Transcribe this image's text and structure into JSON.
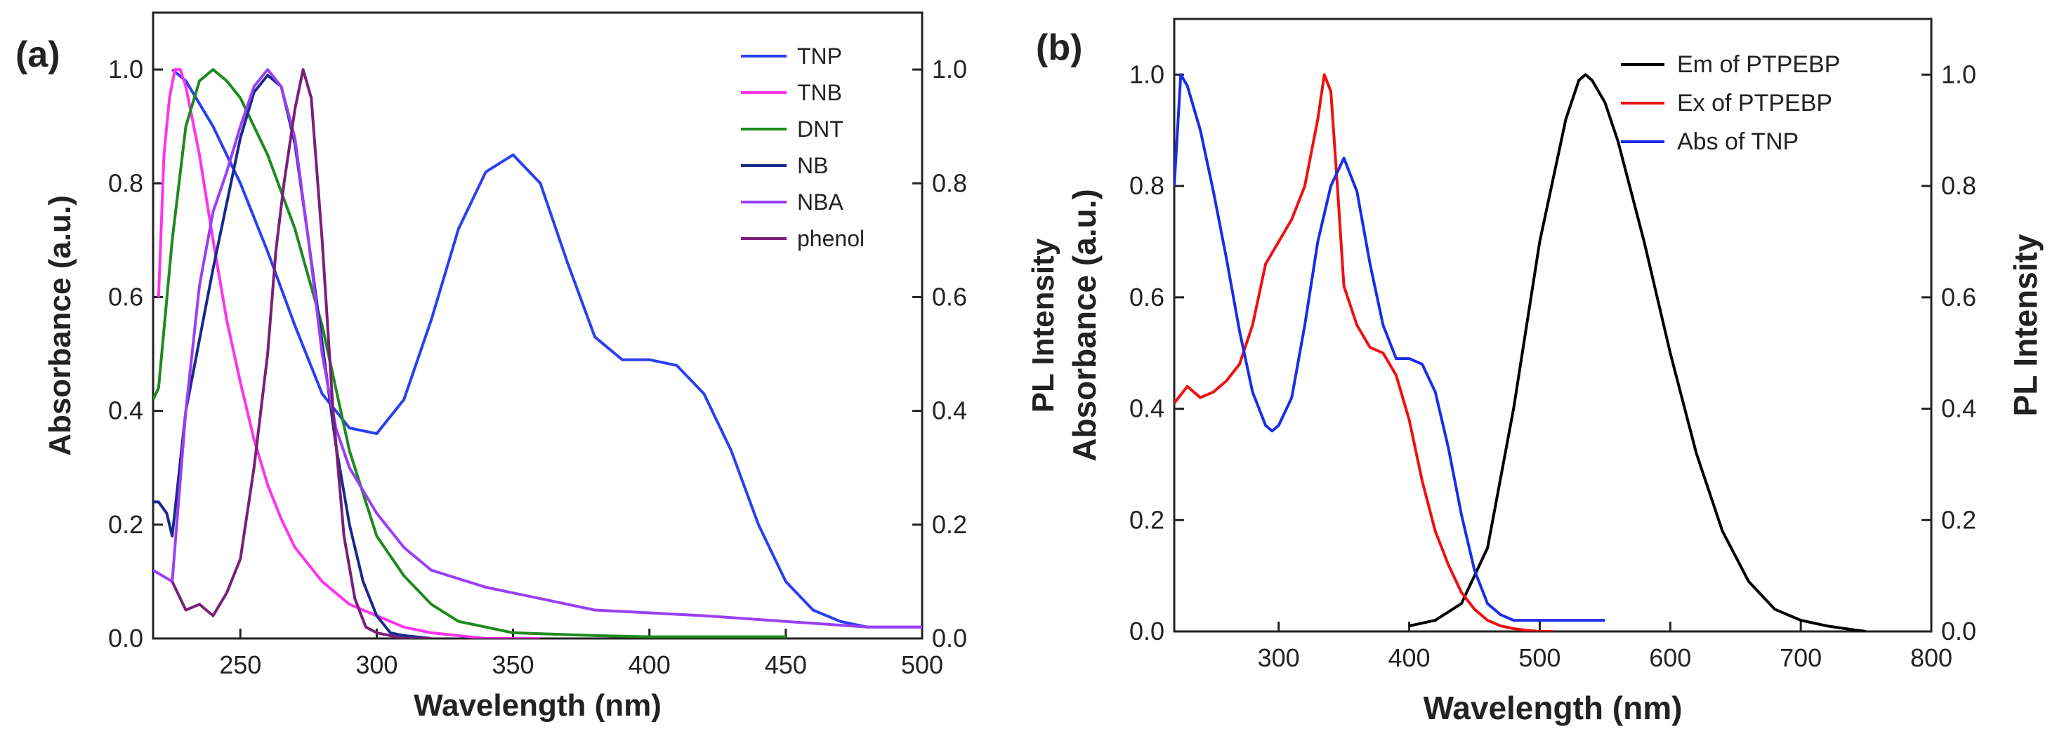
{
  "chart_data": [
    {
      "panel": "(a)",
      "type": "line",
      "xlabel": "Wavelength (nm)",
      "ylabel": "Absorbance (a.u.)",
      "y2label": "PL Intensity",
      "xlim": [
        218,
        500
      ],
      "ylim": [
        0,
        1.1
      ],
      "y2lim": [
        0,
        1.1
      ],
      "xticks": [
        "250",
        "300",
        "350",
        "400",
        "450",
        "500"
      ],
      "yticks": [
        "0.0",
        "0.2",
        "0.4",
        "0.6",
        "0.8",
        "1.0"
      ],
      "y2ticks": [
        "0.0",
        "0.2",
        "0.4",
        "0.6",
        "0.8",
        "1.0"
      ],
      "legend_position": "top-right",
      "series": [
        {
          "name": "TNP",
          "color": "#2b3ff0",
          "x": [
            225,
            230,
            240,
            250,
            260,
            270,
            280,
            290,
            300,
            310,
            320,
            330,
            340,
            350,
            360,
            370,
            380,
            390,
            400,
            410,
            420,
            430,
            440,
            450,
            460,
            470,
            480,
            490,
            500
          ],
          "y": [
            1.0,
            0.98,
            0.9,
            0.8,
            0.68,
            0.55,
            0.43,
            0.37,
            0.36,
            0.42,
            0.56,
            0.72,
            0.82,
            0.85,
            0.8,
            0.66,
            0.53,
            0.49,
            0.49,
            0.48,
            0.43,
            0.33,
            0.2,
            0.1,
            0.05,
            0.03,
            0.02,
            0.02,
            0.02
          ]
        },
        {
          "name": "TNB",
          "color": "#ff33ee",
          "x": [
            220,
            222,
            224,
            226,
            228,
            230,
            235,
            240,
            245,
            250,
            255,
            260,
            265,
            270,
            280,
            290,
            300,
            310,
            320,
            340,
            360
          ],
          "y": [
            0.6,
            0.85,
            0.95,
            1.0,
            1.0,
            0.97,
            0.85,
            0.7,
            0.56,
            0.45,
            0.35,
            0.27,
            0.21,
            0.16,
            0.1,
            0.06,
            0.04,
            0.02,
            0.01,
            0.0,
            0.0
          ]
        },
        {
          "name": "DNT",
          "color": "#1f8a1f",
          "x": [
            218,
            220,
            225,
            230,
            235,
            240,
            245,
            250,
            260,
            270,
            280,
            290,
            300,
            310,
            320,
            330,
            350,
            380,
            400,
            450
          ],
          "y": [
            0.42,
            0.44,
            0.7,
            0.9,
            0.98,
            1.0,
            0.98,
            0.95,
            0.85,
            0.72,
            0.55,
            0.33,
            0.18,
            0.11,
            0.06,
            0.03,
            0.01,
            0.005,
            0.003,
            0.003
          ]
        },
        {
          "name": "NB",
          "color": "#1a2a8c",
          "x": [
            218,
            220,
            223,
            225,
            230,
            240,
            250,
            255,
            260,
            265,
            270,
            275,
            280,
            285,
            290,
            295,
            300,
            305,
            310,
            320
          ],
          "y": [
            0.24,
            0.24,
            0.22,
            0.18,
            0.4,
            0.65,
            0.88,
            0.96,
            0.99,
            0.97,
            0.87,
            0.7,
            0.52,
            0.34,
            0.2,
            0.1,
            0.04,
            0.01,
            0.005,
            0.0
          ]
        },
        {
          "name": "NBA",
          "color": "#9b3ff5",
          "x": [
            218,
            225,
            230,
            235,
            240,
            245,
            250,
            255,
            260,
            265,
            270,
            275,
            280,
            285,
            290,
            300,
            310,
            320,
            340,
            360,
            380,
            400,
            420,
            450,
            480,
            500
          ],
          "y": [
            0.12,
            0.1,
            0.4,
            0.62,
            0.75,
            0.82,
            0.9,
            0.97,
            1.0,
            0.97,
            0.88,
            0.7,
            0.5,
            0.37,
            0.3,
            0.22,
            0.16,
            0.12,
            0.09,
            0.07,
            0.05,
            0.045,
            0.04,
            0.03,
            0.02,
            0.02
          ]
        },
        {
          "name": "phenol",
          "color": "#7a1f7a",
          "x": [
            225,
            230,
            235,
            240,
            245,
            250,
            255,
            260,
            263,
            266,
            270,
            273,
            276,
            280,
            284,
            288,
            292,
            296,
            300,
            310,
            320
          ],
          "y": [
            0.1,
            0.05,
            0.06,
            0.04,
            0.08,
            0.14,
            0.3,
            0.5,
            0.68,
            0.8,
            0.93,
            1.0,
            0.95,
            0.7,
            0.4,
            0.18,
            0.07,
            0.02,
            0.01,
            0.0,
            0.0
          ]
        }
      ]
    },
    {
      "panel": "(b)",
      "type": "line",
      "xlabel": "Wavelength (nm)",
      "ylabel": "Absorbance (a.u.)",
      "y2label": "PL Intensity",
      "xlim": [
        220,
        800
      ],
      "ylim": [
        0,
        1.1
      ],
      "y2lim": [
        0,
        1.1
      ],
      "xticks": [
        "300",
        "400",
        "500",
        "600",
        "700",
        "800"
      ],
      "yticks": [
        "0.0",
        "0.2",
        "0.4",
        "0.6",
        "0.8",
        "1.0"
      ],
      "y2ticks": [
        "0.0",
        "0.2",
        "0.4",
        "0.6",
        "0.8",
        "1.0"
      ],
      "legend_position": "top-right",
      "series": [
        {
          "name": "Em of PTPEBP",
          "color": "#000000",
          "x": [
            400,
            420,
            440,
            460,
            480,
            500,
            520,
            530,
            535,
            540,
            550,
            560,
            580,
            600,
            620,
            640,
            660,
            680,
            700,
            720,
            740,
            750
          ],
          "y": [
            0.01,
            0.02,
            0.05,
            0.15,
            0.4,
            0.7,
            0.92,
            0.99,
            1.0,
            0.99,
            0.95,
            0.88,
            0.7,
            0.5,
            0.32,
            0.18,
            0.09,
            0.04,
            0.02,
            0.01,
            0.003,
            0.0
          ]
        },
        {
          "name": "Ex of PTPEBP",
          "color": "#ee1111",
          "x": [
            220,
            230,
            240,
            250,
            260,
            270,
            280,
            290,
            300,
            310,
            320,
            330,
            335,
            340,
            345,
            350,
            360,
            370,
            380,
            390,
            400,
            410,
            420,
            430,
            440,
            450,
            460,
            470,
            480,
            490,
            500,
            510
          ],
          "y": [
            0.41,
            0.44,
            0.42,
            0.43,
            0.45,
            0.48,
            0.55,
            0.66,
            0.7,
            0.74,
            0.8,
            0.92,
            1.0,
            0.97,
            0.8,
            0.62,
            0.55,
            0.51,
            0.5,
            0.46,
            0.38,
            0.27,
            0.18,
            0.12,
            0.07,
            0.04,
            0.02,
            0.01,
            0.005,
            0.002,
            0.0,
            0.0
          ]
        },
        {
          "name": "Abs of TNP",
          "color": "#1a2ee8",
          "x": [
            220,
            225,
            230,
            240,
            250,
            260,
            270,
            280,
            290,
            295,
            300,
            310,
            320,
            330,
            340,
            350,
            360,
            370,
            380,
            390,
            400,
            410,
            420,
            430,
            440,
            450,
            460,
            470,
            480,
            500,
            520,
            550
          ],
          "y": [
            0.8,
            1.0,
            0.98,
            0.9,
            0.79,
            0.67,
            0.54,
            0.43,
            0.37,
            0.36,
            0.37,
            0.42,
            0.55,
            0.7,
            0.8,
            0.85,
            0.79,
            0.66,
            0.55,
            0.49,
            0.49,
            0.48,
            0.43,
            0.33,
            0.21,
            0.11,
            0.05,
            0.03,
            0.02,
            0.02,
            0.02,
            0.02
          ]
        }
      ]
    }
  ]
}
